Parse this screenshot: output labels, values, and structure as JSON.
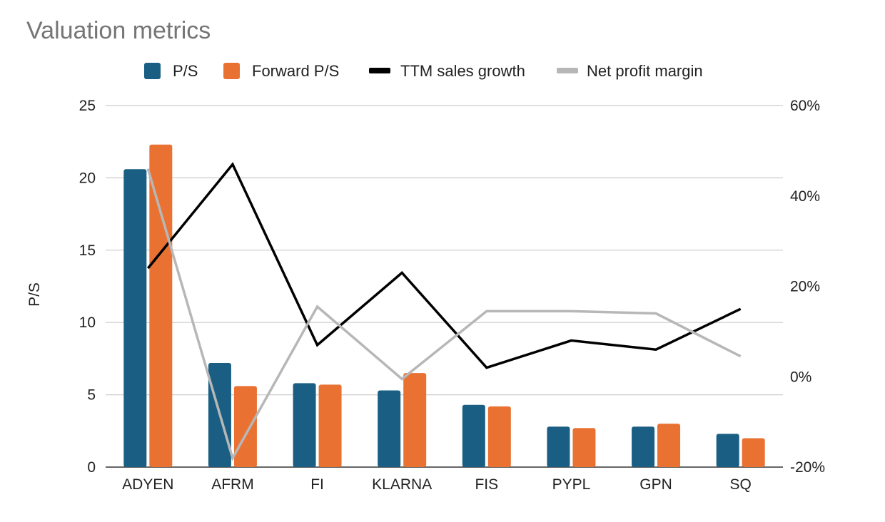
{
  "chart_data": {
    "type": "bar",
    "title": "Valuation metrics",
    "xlabel": "",
    "ylabel": "P/S",
    "ylim": [
      0,
      25
    ],
    "y_ticks": [
      "0",
      "5",
      "10",
      "15",
      "20",
      "25"
    ],
    "y2lim": [
      -20,
      60
    ],
    "y2_ticks": [
      "-20%",
      "0%",
      "20%",
      "40%",
      "60%"
    ],
    "grid": true,
    "legend_position": "top",
    "categories": [
      "ADYEN",
      "AFRM",
      "FI",
      "KLARNA",
      "FIS",
      "PYPL",
      "GPN",
      "SQ"
    ],
    "series": [
      {
        "name": "P/S",
        "type": "bar",
        "axis": "left",
        "color": "#1a5f83",
        "values": [
          20.6,
          7.2,
          5.8,
          5.3,
          4.3,
          2.8,
          2.8,
          2.3
        ]
      },
      {
        "name": "Forward P/S",
        "type": "bar",
        "axis": "left",
        "color": "#e97233",
        "values": [
          22.3,
          5.6,
          5.7,
          6.5,
          4.2,
          2.7,
          3.0,
          2.0
        ]
      },
      {
        "name": "TTM sales growth",
        "type": "line",
        "axis": "right",
        "color": "#000000",
        "unit": "%",
        "values": [
          24,
          47,
          7,
          23,
          2,
          8,
          6,
          15
        ]
      },
      {
        "name": "Net profit margin",
        "type": "line",
        "axis": "right",
        "color": "#b7b7b7",
        "unit": "%",
        "values": [
          46,
          -18,
          15.5,
          -0.5,
          14.5,
          14.5,
          14,
          4.5
        ]
      }
    ]
  }
}
